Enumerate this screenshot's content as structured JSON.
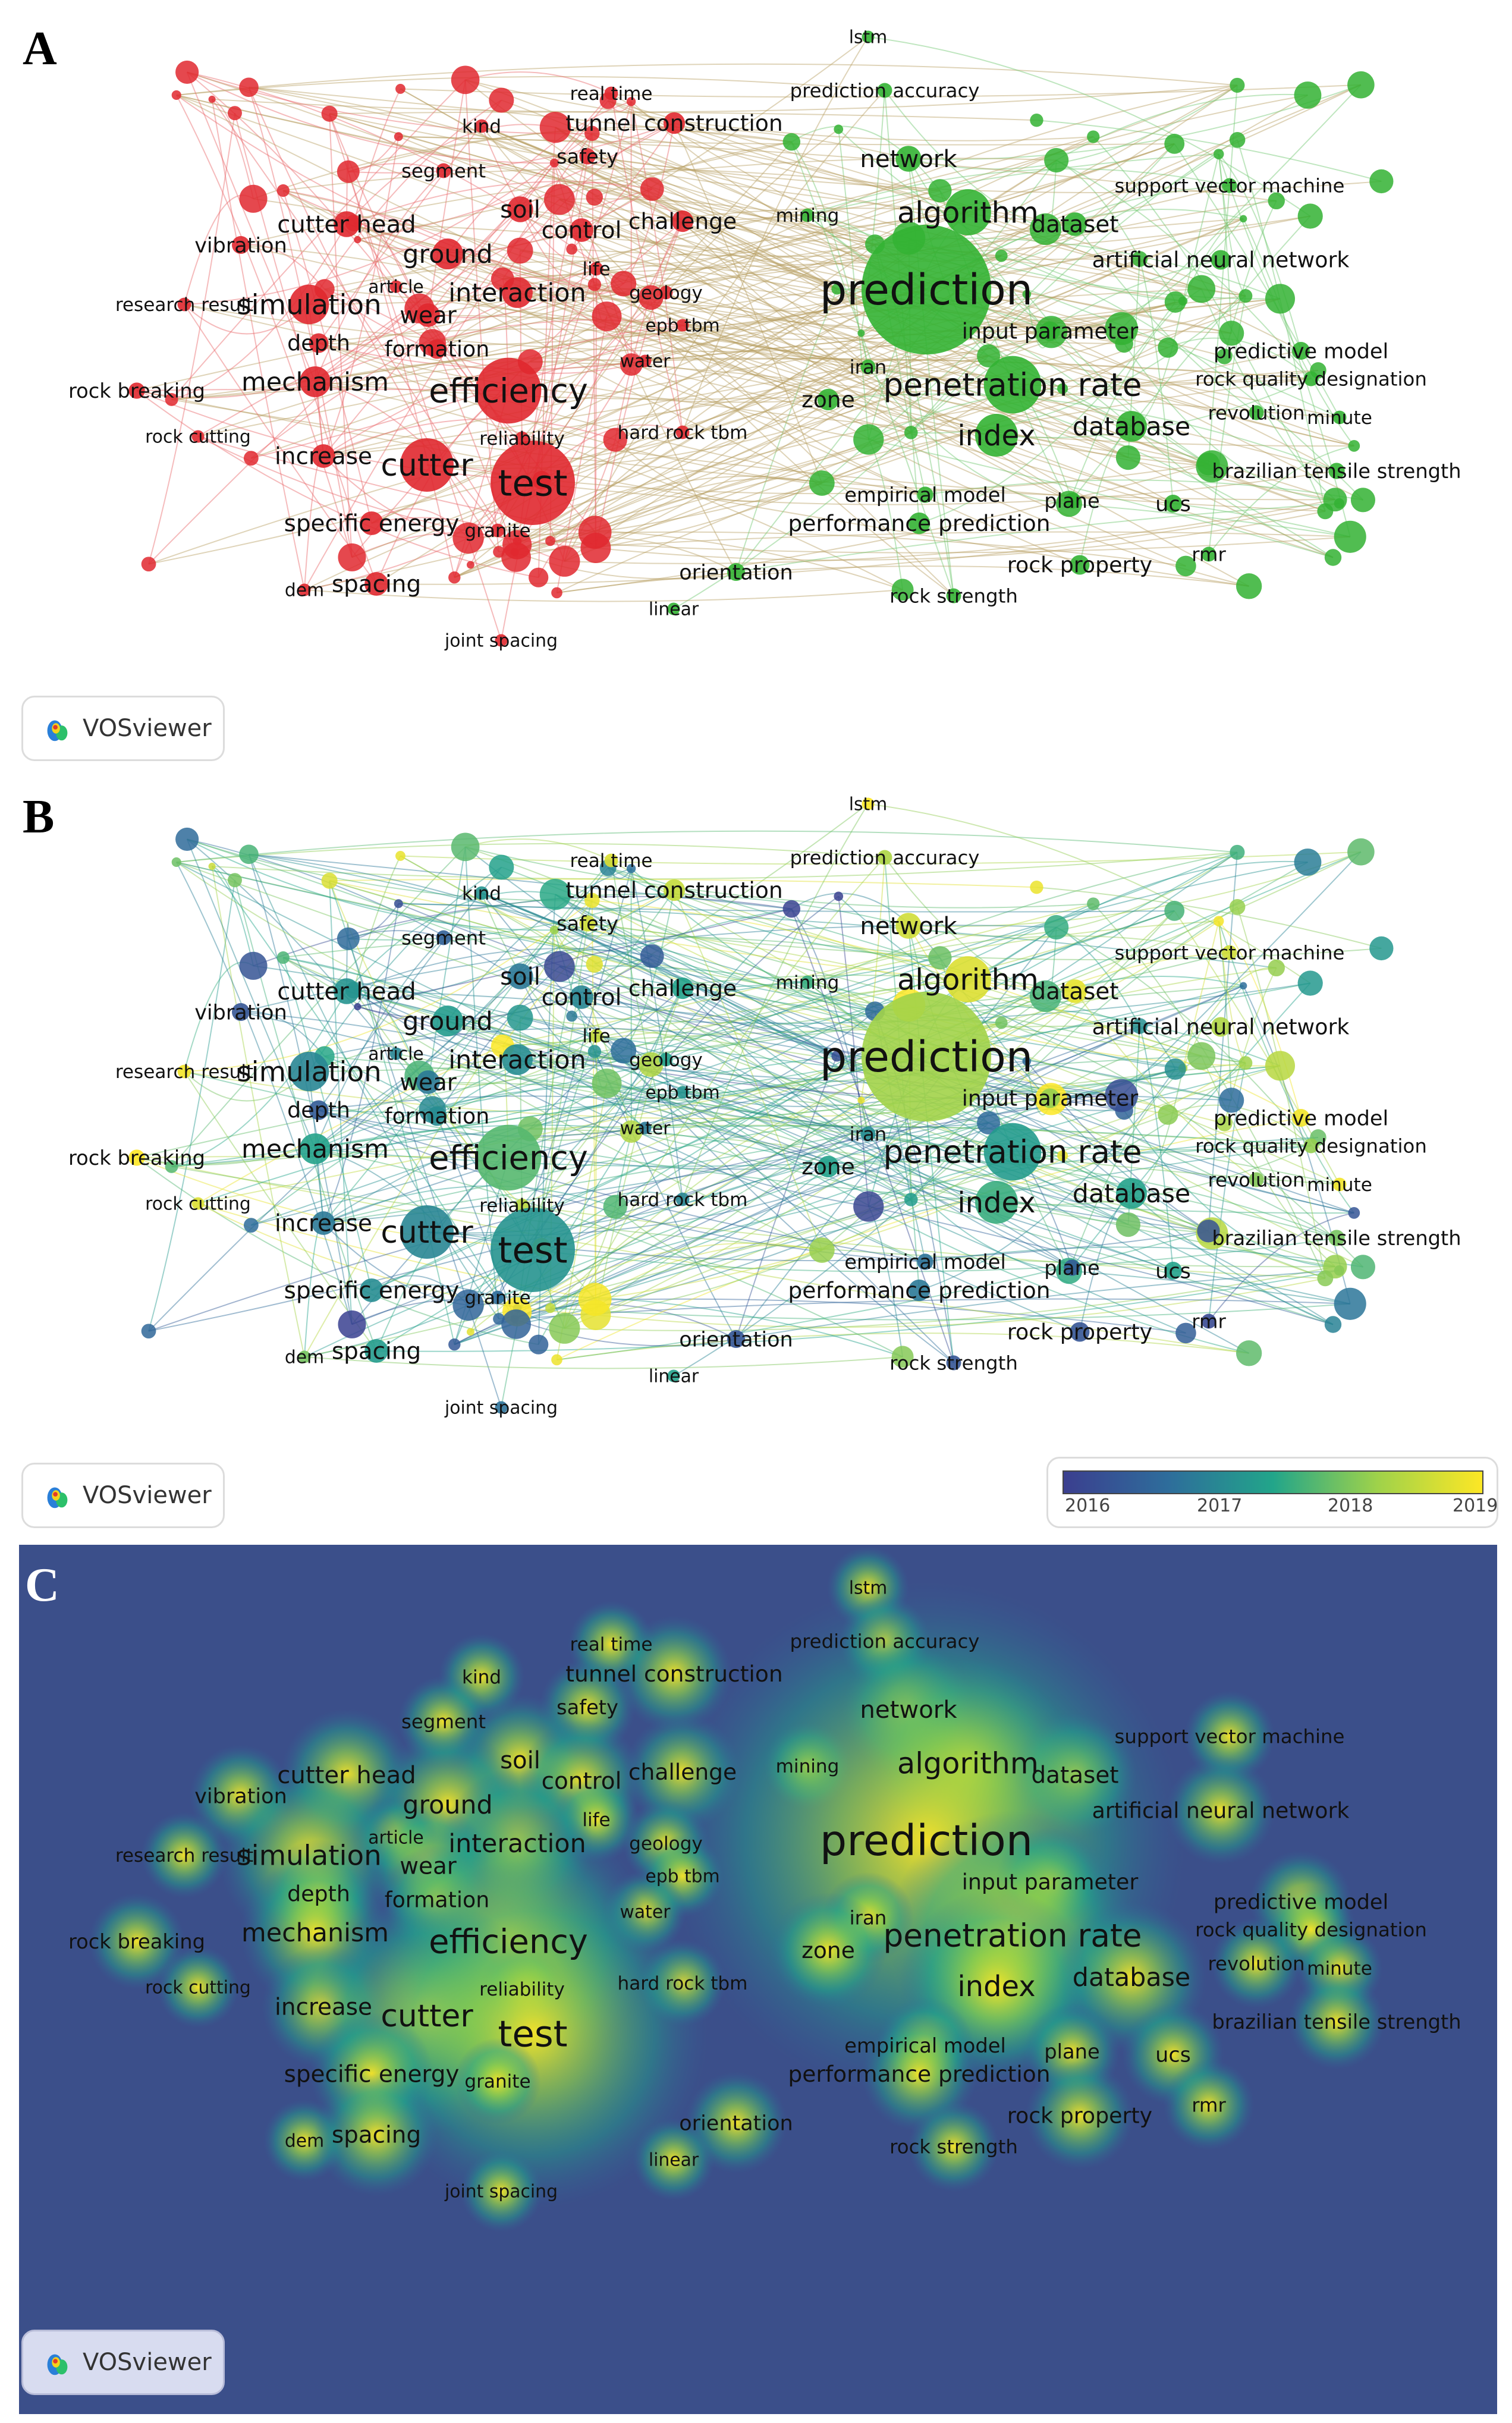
{
  "panels": {
    "a": "A",
    "b": "B",
    "c": "C"
  },
  "branding": {
    "vosviewer": "VOSviewer"
  },
  "legend": {
    "ticks": [
      "2016",
      "2017",
      "2018",
      "2019"
    ],
    "gradient_colors": [
      "#3b3f8f",
      "#2e6d9b",
      "#22a58a",
      "#9fd24a",
      "#fde725"
    ]
  },
  "colors": {
    "cluster1": "#e0282f",
    "cluster2": "#33b233",
    "density_low": "#3b4f8a",
    "density_high": "#fde725"
  },
  "keywords": [
    {
      "id": "lstm",
      "label": "lstm",
      "cluster": 2,
      "weight": 0.6,
      "year": 2019.3
    },
    {
      "id": "prediction_accuracy",
      "label": "prediction accuracy",
      "cluster": 2,
      "weight": 0.8,
      "year": 2018.6
    },
    {
      "id": "real_time",
      "label": "real time",
      "cluster": 1,
      "weight": 0.7,
      "year": 2019.0
    },
    {
      "id": "kind",
      "label": "kind",
      "cluster": 1,
      "weight": 0.7,
      "year": 2017.4
    },
    {
      "id": "tunnel_construction",
      "label": "tunnel construction",
      "cluster": 1,
      "weight": 1.2,
      "year": 2018.8
    },
    {
      "id": "segment",
      "label": "segment",
      "cluster": 1,
      "weight": 0.8,
      "year": 2016.6
    },
    {
      "id": "safety",
      "label": "safety",
      "cluster": 1,
      "weight": 0.9,
      "year": 2018.9
    },
    {
      "id": "network",
      "label": "network",
      "cluster": 2,
      "weight": 1.4,
      "year": 2018.9
    },
    {
      "id": "support_vector_machine",
      "label": "support vector machine",
      "cluster": 2,
      "weight": 0.8,
      "year": 2018.9
    },
    {
      "id": "soil",
      "label": "soil",
      "cluster": 1,
      "weight": 1.4,
      "year": 2017.0
    },
    {
      "id": "mining",
      "label": "mining",
      "cluster": 2,
      "weight": 0.7,
      "year": 2017.8
    },
    {
      "id": "algorithm",
      "label": "algorithm",
      "cluster": 2,
      "weight": 2.1,
      "year": 2019.0
    },
    {
      "id": "cutter_head",
      "label": "cutter head",
      "cluster": 1,
      "weight": 1.4,
      "year": 2017.4
    },
    {
      "id": "control",
      "label": "control",
      "cluster": 1,
      "weight": 1.3,
      "year": 2017.2
    },
    {
      "id": "challenge",
      "label": "challenge",
      "cluster": 1,
      "weight": 1.2,
      "year": 2017.6
    },
    {
      "id": "dataset",
      "label": "dataset",
      "cluster": 2,
      "weight": 1.3,
      "year": 2019.1
    },
    {
      "id": "vibration",
      "label": "vibration",
      "cluster": 1,
      "weight": 1.0,
      "year": 2016.4
    },
    {
      "id": "ground",
      "label": "ground",
      "cluster": 1,
      "weight": 1.6,
      "year": 2017.5
    },
    {
      "id": "life",
      "label": "life",
      "cluster": 1,
      "weight": 0.7,
      "year": 2018.8
    },
    {
      "id": "artificial_neural_network",
      "label": "artificial neural network",
      "cluster": 2,
      "weight": 1.1,
      "year": 2018.6
    },
    {
      "id": "prediction",
      "label": "prediction",
      "cluster": 2,
      "weight": 3.8,
      "year": 2018.5
    },
    {
      "id": "article",
      "label": "article",
      "cluster": 1,
      "weight": 0.6,
      "year": 2017.2
    },
    {
      "id": "interaction",
      "label": "interaction",
      "cluster": 1,
      "weight": 1.6,
      "year": 2017.3
    },
    {
      "id": "geology",
      "label": "geology",
      "cluster": 1,
      "weight": 0.7,
      "year": 2017.6
    },
    {
      "id": "research_result",
      "label": "research result",
      "cluster": 1,
      "weight": 0.7,
      "year": 2019.2
    },
    {
      "id": "simulation",
      "label": "simulation",
      "cluster": 1,
      "weight": 1.9,
      "year": 2017.2
    },
    {
      "id": "wear",
      "label": "wear",
      "cluster": 1,
      "weight": 1.3,
      "year": 2017.0
    },
    {
      "id": "epb_tbm",
      "label": "epb tbm",
      "cluster": 1,
      "weight": 0.6,
      "year": 2017.4
    },
    {
      "id": "input_parameter",
      "label": "input parameter",
      "cluster": 2,
      "weight": 1.1,
      "year": 2018.4
    },
    {
      "id": "depth",
      "label": "depth",
      "cluster": 1,
      "weight": 1.1,
      "year": 2016.5
    },
    {
      "id": "formation",
      "label": "formation",
      "cluster": 1,
      "weight": 1.1,
      "year": 2017.3
    },
    {
      "id": "predictive_model",
      "label": "predictive model",
      "cluster": 2,
      "weight": 1.0,
      "year": 2019.2
    },
    {
      "id": "iran",
      "label": "iran",
      "cluster": 2,
      "weight": 0.8,
      "year": 2017.3
    },
    {
      "id": "water",
      "label": "water",
      "cluster": 1,
      "weight": 0.6,
      "year": 2017.0
    },
    {
      "id": "rock_quality_designation",
      "label": "rock quality designation",
      "cluster": 2,
      "weight": 0.8,
      "year": 2018.4
    },
    {
      "id": "mechanism",
      "label": "mechanism",
      "cluster": 1,
      "weight": 1.6,
      "year": 2017.6
    },
    {
      "id": "efficiency",
      "label": "efficiency",
      "cluster": 1,
      "weight": 2.6,
      "year": 2018.0
    },
    {
      "id": "penetration_rate",
      "label": "penetration rate",
      "cluster": 2,
      "weight": 2.4,
      "year": 2017.5
    },
    {
      "id": "rock_breaking",
      "label": "rock breaking",
      "cluster": 1,
      "weight": 0.9,
      "year": 2019.3
    },
    {
      "id": "zone",
      "label": "zone",
      "cluster": 2,
      "weight": 1.2,
      "year": 2017.6
    },
    {
      "id": "database",
      "label": "database",
      "cluster": 2,
      "weight": 1.6,
      "year": 2017.6
    },
    {
      "id": "revolution",
      "label": "revolution",
      "cluster": 2,
      "weight": 0.8,
      "year": 2018.3
    },
    {
      "id": "minute",
      "label": "minute",
      "cluster": 2,
      "weight": 0.7,
      "year": 2019.2
    },
    {
      "id": "reliability",
      "label": "reliability",
      "cluster": 1,
      "weight": 0.7,
      "year": 2018.7
    },
    {
      "id": "rock_cutting",
      "label": "rock cutting",
      "cluster": 1,
      "weight": 0.6,
      "year": 2019.0
    },
    {
      "id": "hard_rock_tbm",
      "label": "hard rock tbm",
      "cluster": 1,
      "weight": 0.7,
      "year": 2017.2
    },
    {
      "id": "index",
      "label": "index",
      "cluster": 2,
      "weight": 2.0,
      "year": 2017.8
    },
    {
      "id": "increase",
      "label": "increase",
      "cluster": 1,
      "weight": 1.3,
      "year": 2017.0
    },
    {
      "id": "cutter",
      "label": "cutter",
      "cluster": 1,
      "weight": 2.3,
      "year": 2017.2
    },
    {
      "id": "brazilian_tensile_strength",
      "label": "brazilian tensile strength",
      "cluster": 2,
      "weight": 0.9,
      "year": 2018.2
    },
    {
      "id": "test",
      "label": "test",
      "cluster": 1,
      "weight": 3.0,
      "year": 2017.4
    },
    {
      "id": "empirical_model",
      "label": "empirical model",
      "cluster": 2,
      "weight": 0.9,
      "year": 2016.9
    },
    {
      "id": "plane",
      "label": "plane",
      "cluster": 2,
      "weight": 0.9,
      "year": 2016.5
    },
    {
      "id": "ucs",
      "label": "ucs",
      "cluster": 2,
      "weight": 1.0,
      "year": 2017.6
    },
    {
      "id": "specific_energy",
      "label": "specific energy",
      "cluster": 1,
      "weight": 1.3,
      "year": 2017.3
    },
    {
      "id": "performance_prediction",
      "label": "performance prediction",
      "cluster": 2,
      "weight": 1.2,
      "year": 2017.0
    },
    {
      "id": "granite",
      "label": "granite",
      "cluster": 1,
      "weight": 0.7,
      "year": 2016.8
    },
    {
      "id": "orientation",
      "label": "orientation",
      "cluster": 2,
      "weight": 1.0,
      "year": 2016.4
    },
    {
      "id": "rock_property",
      "label": "rock property",
      "cluster": 2,
      "weight": 1.1,
      "year": 2016.4
    },
    {
      "id": "rmr",
      "label": "rmr",
      "cluster": 2,
      "weight": 0.8,
      "year": 2016.2
    },
    {
      "id": "dem",
      "label": "dem",
      "cluster": 1,
      "weight": 0.6,
      "year": 2018.2
    },
    {
      "id": "spacing",
      "label": "spacing",
      "cluster": 1,
      "weight": 1.3,
      "year": 2017.5
    },
    {
      "id": "linear",
      "label": "linear",
      "cluster": 2,
      "weight": 0.6,
      "year": 2017.6
    },
    {
      "id": "rock_strength",
      "label": "rock strength",
      "cluster": 2,
      "weight": 0.8,
      "year": 2016.4
    },
    {
      "id": "joint_spacing",
      "label": "joint spacing",
      "cluster": 1,
      "weight": 0.6,
      "year": 2016.9
    }
  ]
}
